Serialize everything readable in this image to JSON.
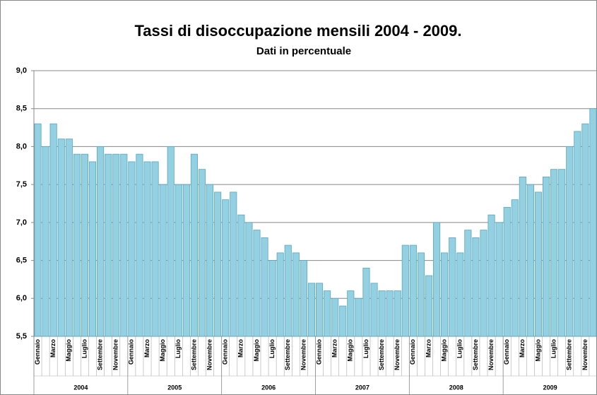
{
  "chart_data": {
    "type": "bar",
    "title": "Tassi di disoccupazione mensili 2004 - 2009.",
    "subtitle": "Dati in percentuale",
    "categories": [
      "Gennaio",
      null,
      "Marzo",
      null,
      "Maggio",
      null,
      "Luglio",
      null,
      "Settembre",
      null,
      "Novembre",
      null,
      "Gennaio",
      null,
      "Marzo",
      null,
      "Maggio",
      null,
      "Luglio",
      null,
      "Settembre",
      null,
      "Novembre",
      null,
      "Gennaio",
      null,
      "Marzo",
      null,
      "Maggio",
      null,
      "Luglio",
      null,
      "Settembre",
      null,
      "Novembre",
      null,
      "Gennaio",
      null,
      "Marzo",
      null,
      "Maggio",
      null,
      "Luglio",
      null,
      "Settembre",
      null,
      "Novembre",
      null,
      "Gennaio",
      null,
      "Marzo",
      null,
      "Maggio",
      null,
      "Luglio",
      null,
      "Settembre",
      null,
      "Novembre",
      null,
      "Gennaio",
      null,
      "Marzo",
      null,
      "Maggio",
      null,
      "Luglio",
      null,
      "Settembre",
      null,
      "Novembre",
      null
    ],
    "groups": [
      "2004",
      "2005",
      "2006",
      "2007",
      "2008",
      "2009"
    ],
    "values": [
      8.3,
      8.0,
      8.3,
      8.1,
      8.1,
      7.9,
      7.9,
      7.8,
      8.0,
      7.9,
      7.9,
      7.9,
      7.8,
      7.9,
      7.8,
      7.8,
      7.5,
      8.0,
      7.5,
      7.5,
      7.9,
      7.7,
      7.5,
      7.4,
      7.3,
      7.4,
      7.1,
      7.0,
      6.9,
      6.8,
      6.5,
      6.6,
      6.7,
      6.6,
      6.5,
      6.2,
      6.2,
      6.1,
      6.0,
      5.9,
      6.1,
      6.0,
      6.4,
      6.2,
      6.1,
      6.1,
      6.1,
      6.7,
      6.7,
      6.6,
      6.3,
      7.0,
      6.6,
      6.8,
      6.6,
      6.9,
      6.8,
      6.9,
      7.1,
      7.0,
      7.2,
      7.3,
      7.6,
      7.5,
      7.4,
      7.6,
      7.7,
      7.7,
      8.0,
      8.2,
      8.3,
      8.5
    ],
    "color": "#92d0e2",
    "ylim": [
      5.5,
      9.0
    ],
    "yticks": [
      {
        "value": 5.5,
        "label": "5,5"
      },
      {
        "value": 6.0,
        "label": "6,0"
      },
      {
        "value": 6.5,
        "label": "6,5"
      },
      {
        "value": 7.0,
        "label": "7,0"
      },
      {
        "value": 7.5,
        "label": "7,5"
      },
      {
        "value": 8.0,
        "label": "8,0"
      },
      {
        "value": 8.5,
        "label": "8,5"
      },
      {
        "value": 9.0,
        "label": "9,0"
      }
    ],
    "grid": true
  }
}
